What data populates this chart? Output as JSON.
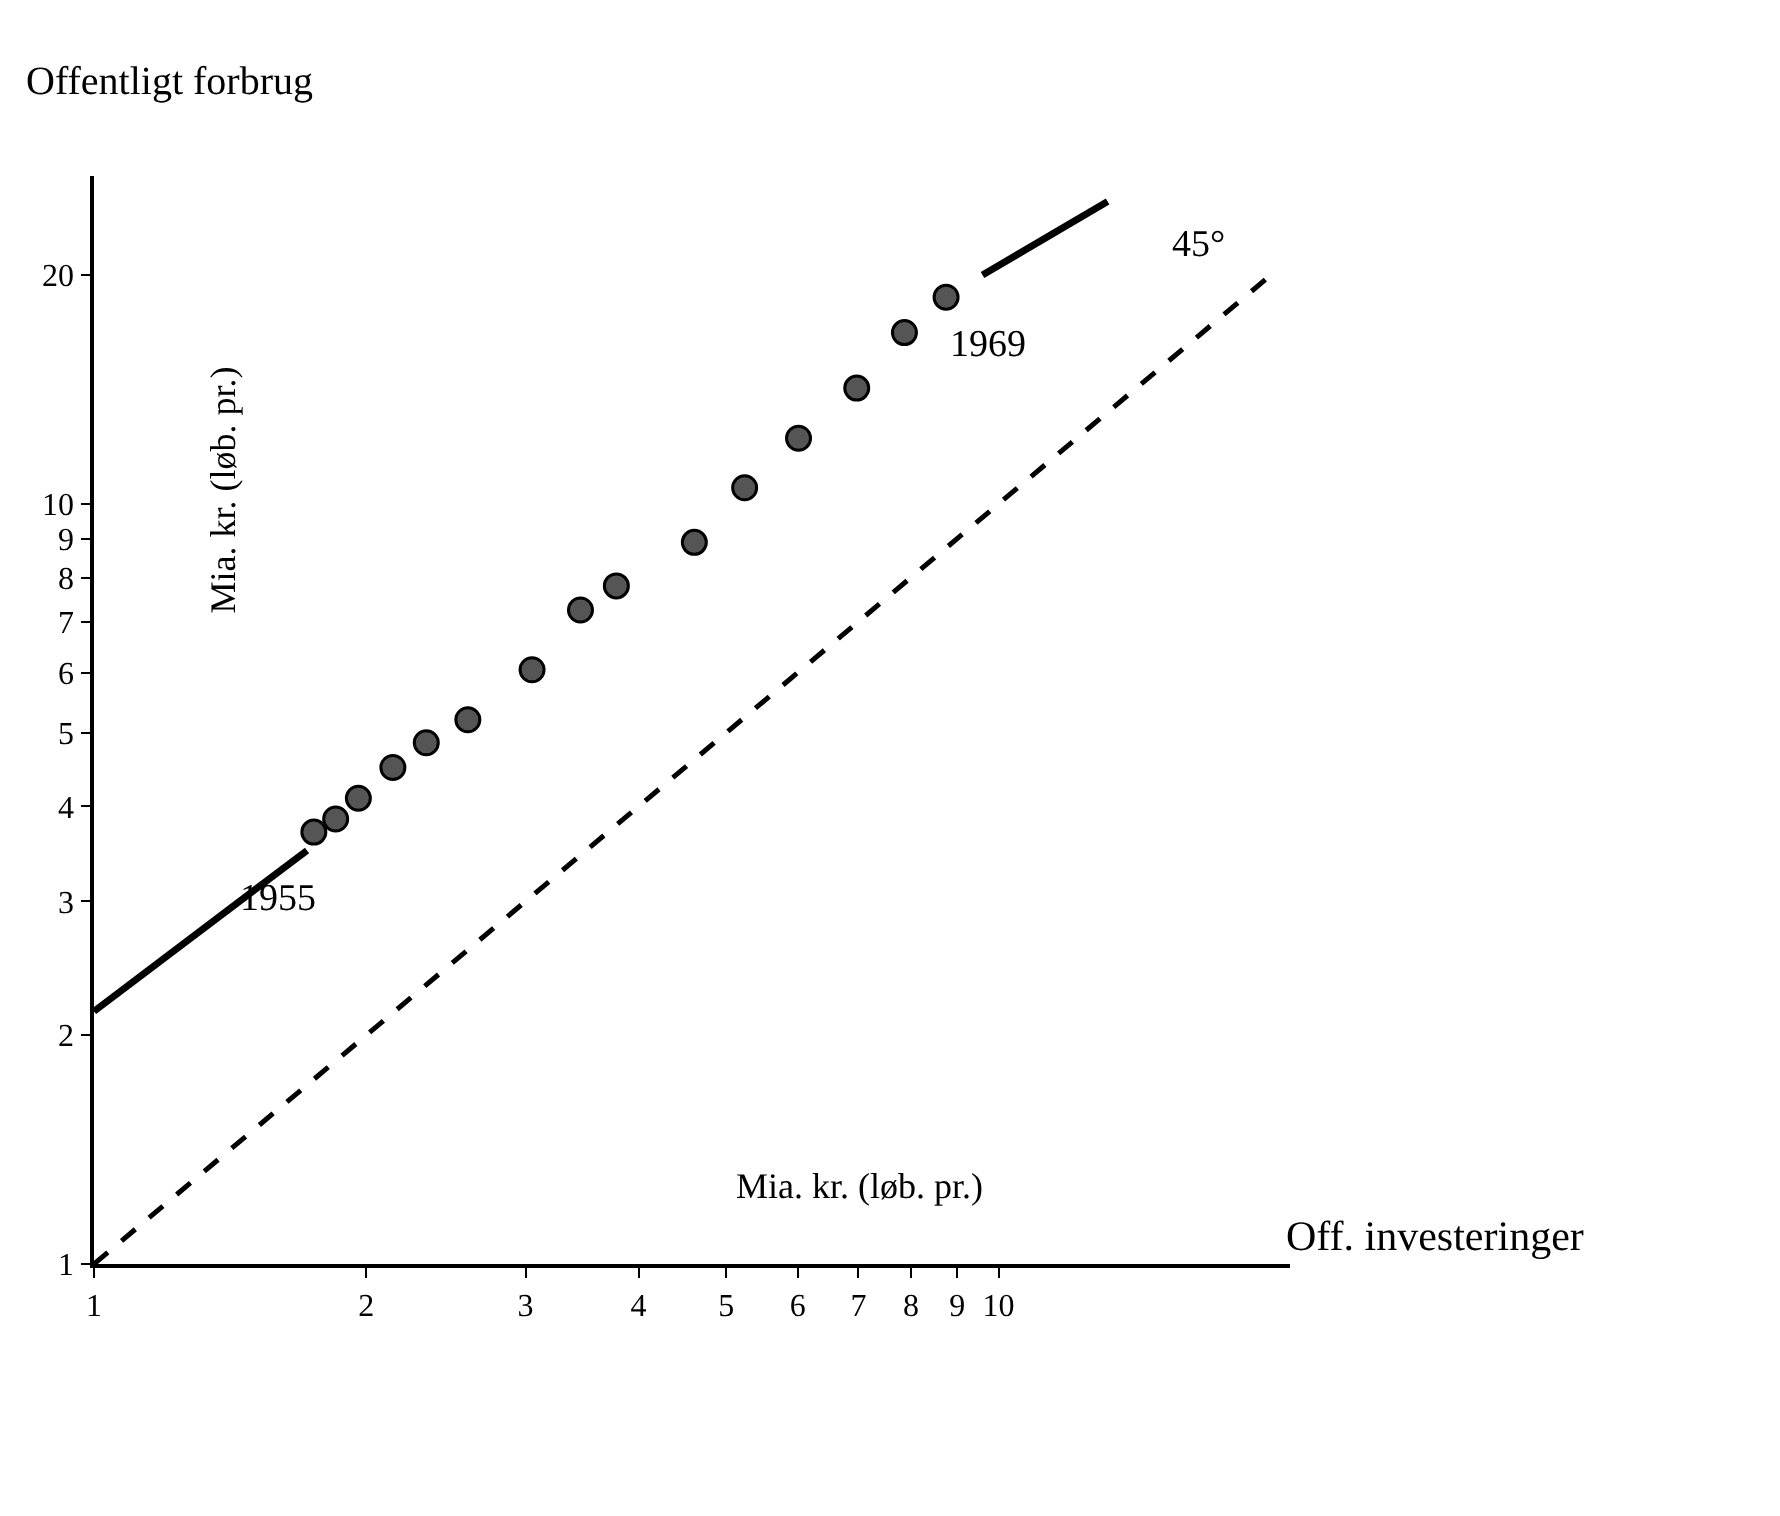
{
  "chart_data": {
    "type": "scatter",
    "xlabel": "Off. investeringer",
    "ylabel": "Offentligt forbrug",
    "log": "xy",
    "grid": false,
    "legend": false,
    "xlim": [
      1,
      21
    ],
    "ylim": [
      1,
      27
    ],
    "xticks": [
      1,
      2,
      3,
      4,
      5,
      6,
      7,
      8,
      9,
      10
    ],
    "yticks": [
      1,
      2,
      3,
      4,
      5,
      6,
      7,
      8,
      9,
      10,
      20
    ],
    "series": [
      {
        "marker": "circle",
        "color": "#555555",
        "x": [
          1.75,
          1.85,
          1.96,
          2.14,
          2.33,
          2.59,
          3.05,
          3.45,
          3.78,
          4.61,
          5.24,
          6.01,
          6.97,
          7.87,
          8.75
        ],
        "values": [
          3.7,
          3.85,
          4.1,
          4.5,
          4.85,
          5.2,
          6.05,
          7.25,
          7.8,
          8.9,
          10.5,
          12.2,
          14.2,
          16.8,
          18.7
        ]
      },
      {
        "type": "line",
        "color": "#000000",
        "line_style": "solid",
        "x": [
          1,
          1.72,
          5,
          9.6,
          13.2
        ],
        "values": [
          2.15,
          3.5,
          null,
          20,
          25
        ]
      },
      {
        "type": "line",
        "color": "#000000",
        "line_style": "dashed",
        "x": [
          1,
          20
        ],
        "values": [
          1,
          20
        ]
      }
    ],
    "annotations": [
      "Mia. kr. (løb. pr.)",
      "Mia. kr. (løb. pr.)",
      "1955",
      "1969",
      "45°"
    ]
  }
}
